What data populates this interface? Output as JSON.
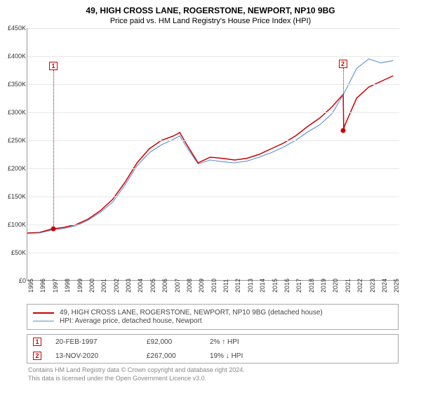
{
  "title": "49, HIGH CROSS LANE, ROGERSTONE, NEWPORT, NP10 9BG",
  "subtitle": "Price paid vs. HM Land Registry's House Price Index (HPI)",
  "chart": {
    "type": "line",
    "ylim": [
      0,
      450000
    ],
    "ytick_step": 50000,
    "yticks": [
      "£0",
      "£50K",
      "£100K",
      "£150K",
      "£200K",
      "£250K",
      "£300K",
      "£350K",
      "£400K",
      "£450K"
    ],
    "xlim": [
      1995,
      2025.5
    ],
    "xticks": [
      1995,
      1996,
      1997,
      1998,
      1999,
      2000,
      2001,
      2002,
      2003,
      2004,
      2005,
      2006,
      2007,
      2008,
      2009,
      2010,
      2011,
      2012,
      2013,
      2014,
      2015,
      2016,
      2017,
      2018,
      2019,
      2020,
      2021,
      2022,
      2023,
      2024,
      2025
    ],
    "grid_color": "#e8e8e8",
    "background_color": "#ffffff",
    "axis_color": "#999999",
    "tick_fontsize": 9,
    "title_fontsize": 12,
    "subtitle_fontsize": 11,
    "series": [
      {
        "name": "property",
        "label": "49, HIGH CROSS LANE, ROGERSTONE, NEWPORT, NP10 9BG (detached house)",
        "color": "#cc0000",
        "line_width": 1.5,
        "x": [
          1995,
          1996,
          1997,
          1998,
          1999,
          2000,
          2001,
          2002,
          2003,
          2004,
          2005,
          2006,
          2007,
          2007.5,
          2008,
          2009,
          2010,
          2011,
          2012,
          2013,
          2014,
          2015,
          2016,
          2017,
          2018,
          2019,
          2020,
          2020.9,
          2020.95,
          2021,
          2022,
          2023,
          2024,
          2025
        ],
        "y": [
          85000,
          86000,
          92000,
          95000,
          100000,
          110000,
          125000,
          145000,
          175000,
          210000,
          235000,
          250000,
          258000,
          264000,
          245000,
          210000,
          220000,
          218000,
          215000,
          218000,
          225000,
          235000,
          245000,
          258000,
          275000,
          290000,
          310000,
          332000,
          267000,
          275000,
          325000,
          345000,
          355000,
          365000
        ]
      },
      {
        "name": "hpi",
        "label": "HPI: Average price, detached house, Newport",
        "color": "#5b8fd6",
        "line_width": 1.1,
        "x": [
          1995,
          1996,
          1997,
          1998,
          1999,
          2000,
          2001,
          2002,
          2003,
          2004,
          2005,
          2006,
          2007,
          2007.5,
          2008,
          2009,
          2010,
          2011,
          2012,
          2013,
          2014,
          2015,
          2016,
          2017,
          2018,
          2019,
          2020,
          2021,
          2022,
          2023,
          2024,
          2025
        ],
        "y": [
          84000,
          85000,
          90000,
          93000,
          98000,
          108000,
          122000,
          140000,
          170000,
          205000,
          228000,
          242000,
          252000,
          258000,
          240000,
          208000,
          215000,
          212000,
          210000,
          213000,
          220000,
          228000,
          238000,
          250000,
          265000,
          278000,
          298000,
          335000,
          378000,
          395000,
          388000,
          392000
        ]
      }
    ],
    "markers": [
      {
        "id": "1",
        "x": 1997.13,
        "y": 92000,
        "box_top": 48,
        "line_from": 60,
        "line_to": 286
      },
      {
        "id": "2",
        "x": 2020.87,
        "y": 267000,
        "box_top": 45,
        "line_from": 57,
        "line_to": 147
      }
    ]
  },
  "legend": {
    "series1_label": "49, HIGH CROSS LANE, ROGERSTONE, NEWPORT, NP10 9BG (detached house)",
    "series2_label": "HPI: Average price, detached house, Newport"
  },
  "transactions": [
    {
      "marker": "1",
      "date": "20-FEB-1997",
      "price": "£92,000",
      "pct": "2% ↑ HPI"
    },
    {
      "marker": "2",
      "date": "13-NOV-2020",
      "price": "£267,000",
      "pct": "19% ↓ HPI"
    }
  ],
  "licence_line1": "Contains HM Land Registry data © Crown copyright and database right 2024.",
  "licence_line2": "This data is licensed under the Open Government Licence v3.0."
}
